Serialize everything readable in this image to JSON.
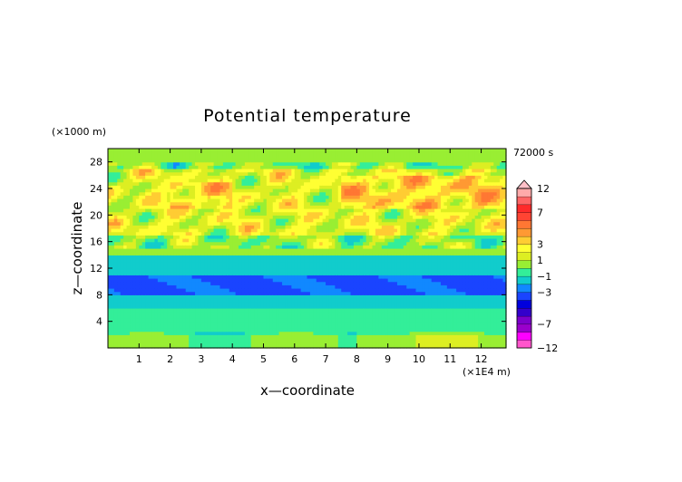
{
  "chart_data": {
    "type": "heatmap",
    "title": "Potential temperature",
    "time_label": "72000 s",
    "xlabel": "x—coordinate",
    "ylabel": "z—coordinate",
    "x_unit": "(×1E4 m)",
    "y_unit": "(×1000 m)",
    "xlim": [
      0,
      12.8
    ],
    "ylim": [
      0,
      30
    ],
    "xticks": [
      "1",
      "2",
      "3",
      "4",
      "5",
      "6",
      "7",
      "8",
      "9",
      "10",
      "11",
      "12"
    ],
    "yticks": [
      "4",
      "8",
      "12",
      "16",
      "20",
      "24",
      "28"
    ],
    "colorbar": {
      "levels": [
        -12,
        -9,
        -8,
        -7,
        -6,
        -5,
        -4,
        -3,
        -2,
        -1,
        0,
        1,
        2,
        3,
        4,
        5,
        6,
        7,
        8,
        12
      ],
      "colors": [
        "#ff55cc",
        "#ff00ff",
        "#9a00cc",
        "#7c00cc",
        "#3300cc",
        "#0000dd",
        "#1a44ff",
        "#1188ff",
        "#11cccc",
        "#33ee99",
        "#99ee33",
        "#ddee22",
        "#ffff33",
        "#ffcc33",
        "#ff9933",
        "#ff7733",
        "#ff4433",
        "#ff2a2a",
        "#ff6666",
        "#ffaaaa"
      ],
      "labels": [
        "12",
        "7",
        "3",
        "1",
        "−1",
        "−3",
        "−7",
        "−12"
      ],
      "extend": "max"
    },
    "field": {
      "description_bands": [
        {
          "z_from": 0,
          "z_to": 2,
          "mean": 0.2
        },
        {
          "z_from": 2,
          "z_to": 6,
          "mean": -0.6
        },
        {
          "z_from": 6,
          "z_to": 8,
          "mean": -1.5
        },
        {
          "z_from": 8,
          "z_to": 11,
          "mean": -3.2
        },
        {
          "z_from": 11,
          "z_to": 14,
          "mean": -1.6
        },
        {
          "z_from": 14,
          "z_to": 17,
          "mean": 0.5
        },
        {
          "z_from": 17,
          "z_to": 27,
          "mean": 1.8
        },
        {
          "z_from": 27,
          "z_to": 30,
          "mean": 0.3
        }
      ]
    }
  }
}
